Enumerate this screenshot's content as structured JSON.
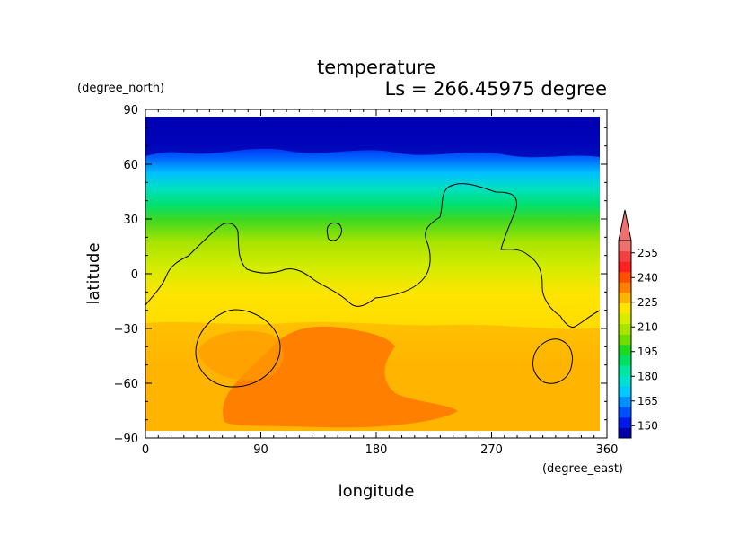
{
  "chart_data": {
    "type": "heatmap",
    "title": "temperature",
    "subtitle": "Ls = 266.45975 degree",
    "xlabel": "longitude",
    "ylabel": "latitude",
    "xunit": "(degree_east)",
    "yunit": "(degree_north)",
    "xlim": [
      0,
      360
    ],
    "ylim": [
      -90,
      90
    ],
    "xticks": [
      "0",
      "90",
      "180",
      "270",
      "360"
    ],
    "yticks": [
      "90",
      "60",
      "30",
      "0",
      "−30",
      "−60",
      "−90"
    ],
    "colorbar": {
      "levels": [
        150,
        165,
        180,
        195,
        210,
        225,
        240,
        255
      ],
      "labels": [
        "150",
        "165",
        "180",
        "195",
        "210",
        "225",
        "240",
        "255"
      ],
      "colors": [
        "#0000a8",
        "#0018e8",
        "#0050ff",
        "#0090ff",
        "#00c8ff",
        "#00e0d0",
        "#00e8a0",
        "#00e060",
        "#20d820",
        "#70dc00",
        "#a8e400",
        "#d8ec00",
        "#ffe400",
        "#ffb400",
        "#ff8000",
        "#ff5000",
        "#ff2020",
        "#f04040",
        "#f07070"
      ],
      "extend_color": "#f07070"
    },
    "grid": false,
    "legend": "colorbar-right"
  }
}
